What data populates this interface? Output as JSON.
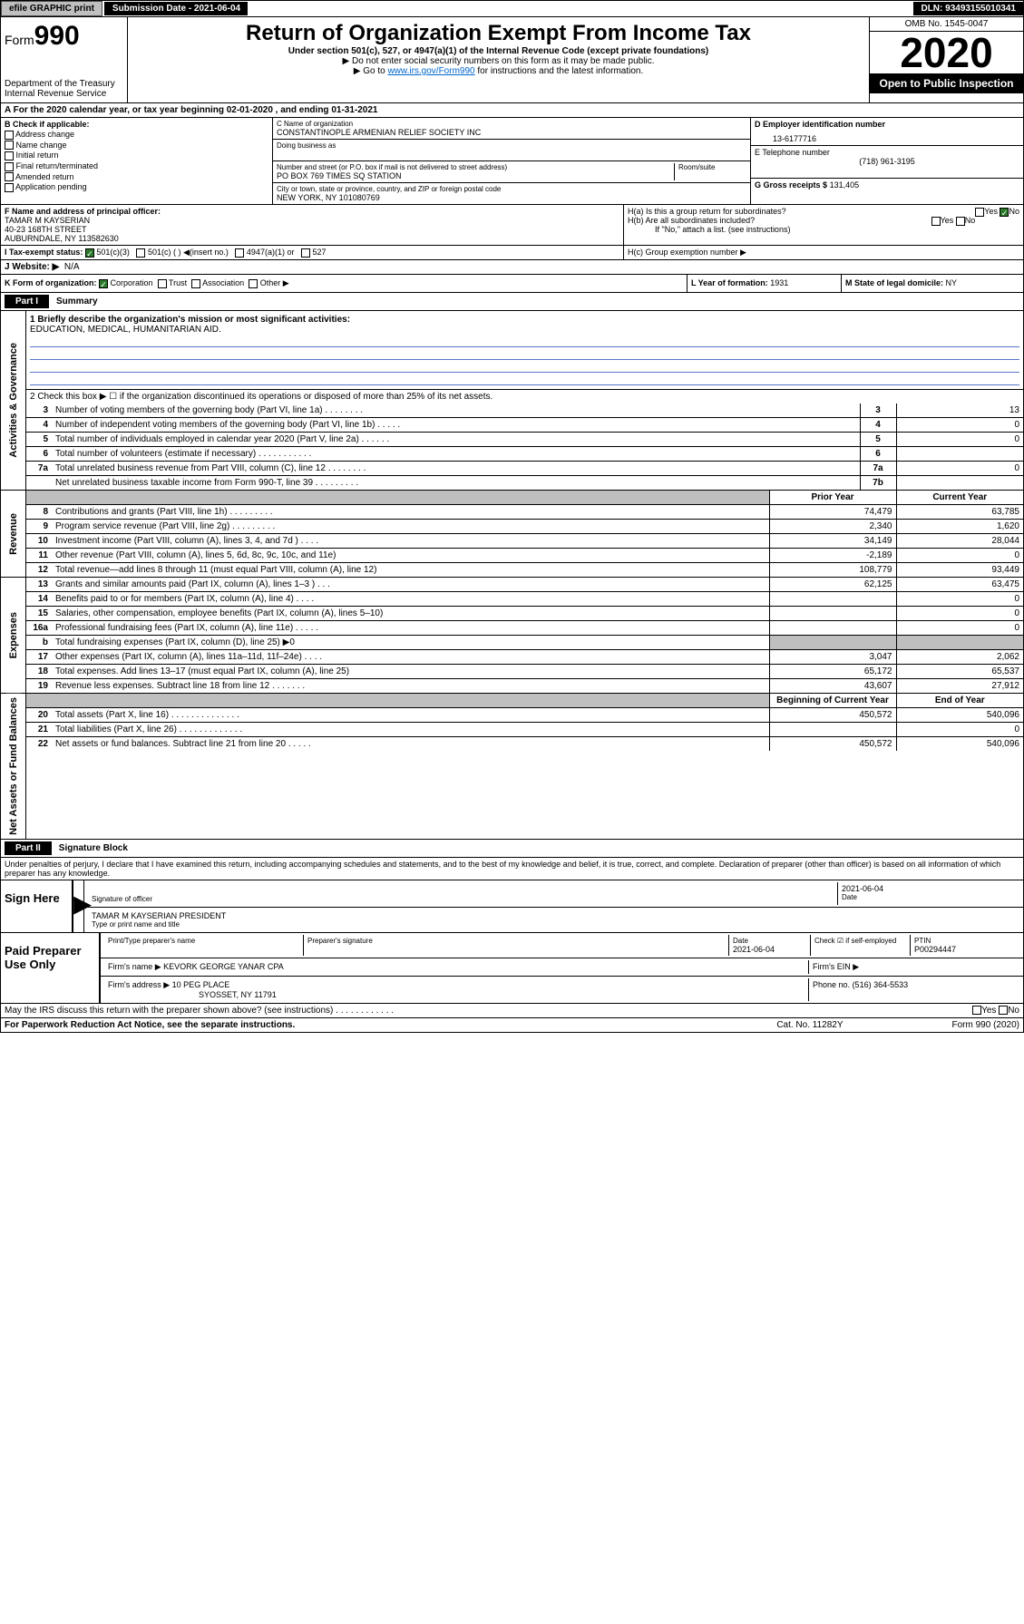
{
  "topbar": {
    "efile": "efile GRAPHIC print",
    "submission": "Submission Date - 2021-06-04",
    "dln": "DLN: 93493155010341"
  },
  "header": {
    "form": "Form",
    "formnum": "990",
    "dept": "Department of the Treasury\nInternal Revenue Service",
    "title": "Return of Organization Exempt From Income Tax",
    "subtitle": "Under section 501(c), 527, or 4947(a)(1) of the Internal Revenue Code (except private foundations)",
    "note1": "▶ Do not enter social security numbers on this form as it may be made public.",
    "note2_pre": "▶ Go to ",
    "note2_link": "www.irs.gov/Form990",
    "note2_post": " for instructions and the latest information.",
    "omb": "OMB No. 1545-0047",
    "year": "2020",
    "open": "Open to Public Inspection"
  },
  "period": "A For the 2020 calendar year, or tax year beginning 02-01-2020   , and ending 01-31-2021",
  "sectionB": {
    "label": "B Check if applicable:",
    "items": [
      "Address change",
      "Name change",
      "Initial return",
      "Final return/terminated",
      "Amended return",
      "Application pending"
    ]
  },
  "sectionC": {
    "name_label": "C Name of organization",
    "name": "CONSTANTINOPLE ARMENIAN RELIEF SOCIETY INC",
    "dba_label": "Doing business as",
    "dba": "",
    "addr_label": "Number and street (or P.O. box if mail is not delivered to street address)",
    "room_label": "Room/suite",
    "addr": "PO BOX 769 TIMES SQ STATION",
    "city_label": "City or town, state or province, country, and ZIP or foreign postal code",
    "city": "NEW YORK, NY  101080769"
  },
  "sectionD": {
    "ein_label": "D Employer identification number",
    "ein": "13-6177716",
    "phone_label": "E Telephone number",
    "phone": "(718) 961-3195",
    "gross_label": "G Gross receipts $",
    "gross": "131,405"
  },
  "sectionF": {
    "label": "F  Name and address of principal officer:",
    "name": "TAMAR M KAYSERIAN",
    "addr1": "40-23 168TH STREET",
    "addr2": "AUBURNDALE, NY  113582630"
  },
  "sectionH": {
    "ha": "H(a)  Is this a group return for subordinates?",
    "hb": "H(b)  Are all subordinates included?",
    "hb_note": "If \"No,\" attach a list. (see instructions)",
    "hc": "H(c)  Group exemption number ▶"
  },
  "sectionI": {
    "label": "I  Tax-exempt status:",
    "opts": [
      "501(c)(3)",
      "501(c) (  ) ◀(insert no.)",
      "4947(a)(1) or",
      "527"
    ]
  },
  "sectionJ": {
    "label": "J  Website: ▶",
    "val": "N/A"
  },
  "sectionK": {
    "label": "K Form of organization:",
    "opts": [
      "Corporation",
      "Trust",
      "Association",
      "Other ▶"
    ]
  },
  "sectionL": {
    "label": "L Year of formation:",
    "val": "1931"
  },
  "sectionM": {
    "label": "M State of legal domicile:",
    "val": "NY"
  },
  "part1": {
    "label": "Part I",
    "title": "Summary",
    "q1_label": "1  Briefly describe the organization's mission or most significant activities:",
    "q1_val": "EDUCATION, MEDICAL, HUMANITARIAN AID.",
    "q2": "2   Check this box ▶ ☐  if the organization discontinued its operations or disposed of more than 25% of its net assets.",
    "rows_gov": [
      {
        "n": "3",
        "t": "Number of voting members of the governing body (Part VI, line 1a)  .  .  .  .  .  .  .  .",
        "b": "3",
        "v": "13"
      },
      {
        "n": "4",
        "t": "Number of independent voting members of the governing body (Part VI, line 1b)  .  .  .  .  .",
        "b": "4",
        "v": "0"
      },
      {
        "n": "5",
        "t": "Total number of individuals employed in calendar year 2020 (Part V, line 2a)  .  .  .  .  .  .",
        "b": "5",
        "v": "0"
      },
      {
        "n": "6",
        "t": "Total number of volunteers (estimate if necessary)  .  .  .  .  .  .  .  .  .  .  .",
        "b": "6",
        "v": ""
      },
      {
        "n": "7a",
        "t": "Total unrelated business revenue from Part VIII, column (C), line 12  .  .  .  .  .  .  .  .",
        "b": "7a",
        "v": "0"
      },
      {
        "n": "",
        "t": "Net unrelated business taxable income from Form 990-T, line 39  .  .  .  .  .  .  .  .  .",
        "b": "7b",
        "v": ""
      }
    ],
    "prior_hdr": "Prior Year",
    "curr_hdr": "Current Year",
    "rows_rev": [
      {
        "n": "8",
        "t": "Contributions and grants (Part VIII, line 1h)  .  .  .  .  .  .  .  .  .",
        "p": "74,479",
        "c": "63,785"
      },
      {
        "n": "9",
        "t": "Program service revenue (Part VIII, line 2g)  .  .  .  .  .  .  .  .  .",
        "p": "2,340",
        "c": "1,620"
      },
      {
        "n": "10",
        "t": "Investment income (Part VIII, column (A), lines 3, 4, and 7d )  .  .  .  .",
        "p": "34,149",
        "c": "28,044"
      },
      {
        "n": "11",
        "t": "Other revenue (Part VIII, column (A), lines 5, 6d, 8c, 9c, 10c, and 11e)",
        "p": "-2,189",
        "c": "0"
      },
      {
        "n": "12",
        "t": "Total revenue—add lines 8 through 11 (must equal Part VIII, column (A), line 12)",
        "p": "108,779",
        "c": "93,449"
      }
    ],
    "rows_exp": [
      {
        "n": "13",
        "t": "Grants and similar amounts paid (Part IX, column (A), lines 1–3 )  .  .  .",
        "p": "62,125",
        "c": "63,475"
      },
      {
        "n": "14",
        "t": "Benefits paid to or for members (Part IX, column (A), line 4)  .  .  .  .",
        "p": "",
        "c": "0"
      },
      {
        "n": "15",
        "t": "Salaries, other compensation, employee benefits (Part IX, column (A), lines 5–10)",
        "p": "",
        "c": "0"
      },
      {
        "n": "16a",
        "t": "Professional fundraising fees (Part IX, column (A), line 11e)  .  .  .  .  .",
        "p": "",
        "c": "0"
      },
      {
        "n": "b",
        "t": "Total fundraising expenses (Part IX, column (D), line 25) ▶0",
        "p": "shade",
        "c": "shade"
      },
      {
        "n": "17",
        "t": "Other expenses (Part IX, column (A), lines 11a–11d, 11f–24e)  .  .  .  .",
        "p": "3,047",
        "c": "2,062"
      },
      {
        "n": "18",
        "t": "Total expenses. Add lines 13–17 (must equal Part IX, column (A), line 25)",
        "p": "65,172",
        "c": "65,537"
      },
      {
        "n": "19",
        "t": "Revenue less expenses. Subtract line 18 from line 12  .  .  .  .  .  .  .",
        "p": "43,607",
        "c": "27,912"
      }
    ],
    "begin_hdr": "Beginning of Current Year",
    "end_hdr": "End of Year",
    "rows_net": [
      {
        "n": "20",
        "t": "Total assets (Part X, line 16)  .  .  .  .  .  .  .  .  .  .  .  .  .  .",
        "p": "450,572",
        "c": "540,096"
      },
      {
        "n": "21",
        "t": "Total liabilities (Part X, line 26)  .  .  .  .  .  .  .  .  .  .  .  .  .",
        "p": "",
        "c": "0"
      },
      {
        "n": "22",
        "t": "Net assets or fund balances. Subtract line 21 from line 20  .  .  .  .  .",
        "p": "450,572",
        "c": "540,096"
      }
    ],
    "side_gov": "Activities & Governance",
    "side_rev": "Revenue",
    "side_exp": "Expenses",
    "side_net": "Net Assets or Fund Balances"
  },
  "part2": {
    "label": "Part II",
    "title": "Signature Block",
    "decl": "Under penalties of perjury, I declare that I have examined this return, including accompanying schedules and statements, and to the best of my knowledge and belief, it is true, correct, and complete. Declaration of preparer (other than officer) is based on all information of which preparer has any knowledge."
  },
  "sign": {
    "label": "Sign Here",
    "sig_label": "Signature of officer",
    "date": "2021-06-04",
    "date_label": "Date",
    "name": "TAMAR M KAYSERIAN  PRESIDENT",
    "name_label": "Type or print name and title"
  },
  "paid": {
    "label": "Paid Preparer Use Only",
    "h1": "Print/Type preparer's name",
    "h2": "Preparer's signature",
    "h3": "Date",
    "h4": "Check ☑ if self-employed",
    "h5": "PTIN",
    "date": "2021-06-04",
    "ptin": "P00294447",
    "firm_label": "Firm's name    ▶",
    "firm": "KEVORK GEORGE YANAR CPA",
    "ein_label": "Firm's EIN ▶",
    "ein": "",
    "addr_label": "Firm's address ▶",
    "addr1": "10 PEG PLACE",
    "addr2": "SYOSSET, NY  11791",
    "phone_label": "Phone no.",
    "phone": "(516) 364-5533"
  },
  "discuss": "May the IRS discuss this return with the preparer shown above? (see instructions)   .  .  .  .  .  .  .  .  .  .  .  .",
  "footer": {
    "l": "For Paperwork Reduction Act Notice, see the separate instructions.",
    "m": "Cat. No. 11282Y",
    "r": "Form 990 (2020)"
  }
}
